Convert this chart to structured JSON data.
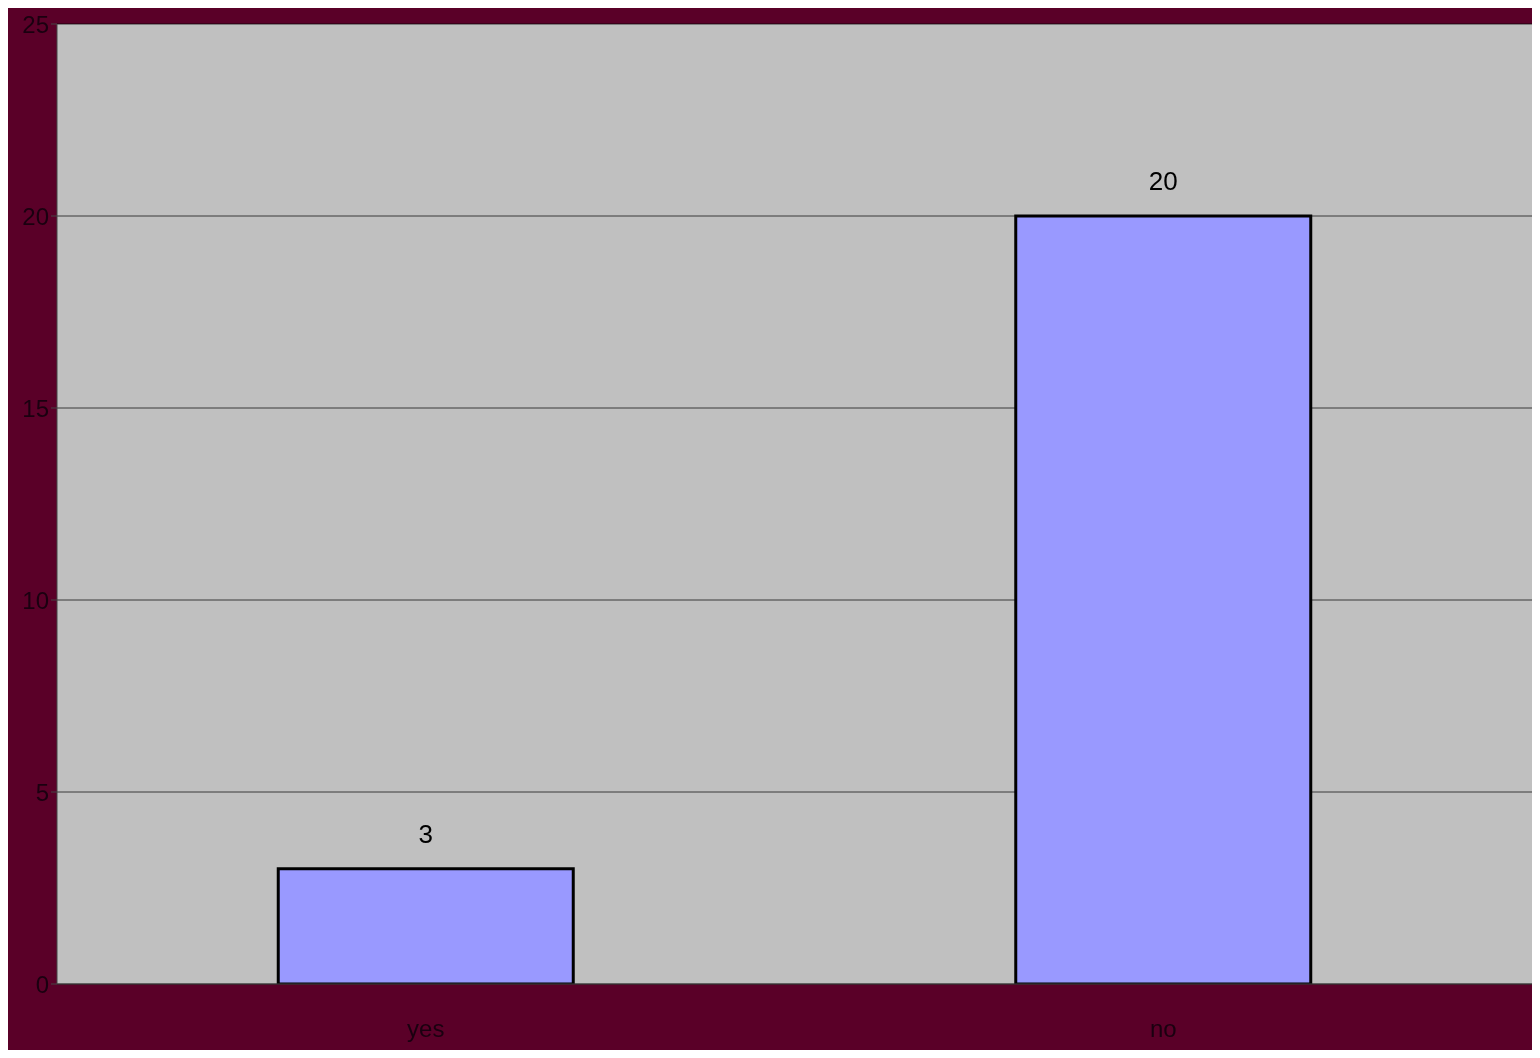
{
  "chart_data": {
    "type": "bar",
    "categories": [
      "yes",
      "no"
    ],
    "values": [
      3,
      20
    ],
    "color": "#9999ff",
    "ylim": [
      0,
      25
    ],
    "yticks": [
      0,
      5,
      10,
      15,
      20,
      25
    ],
    "grid": "y",
    "data_labels": true
  }
}
